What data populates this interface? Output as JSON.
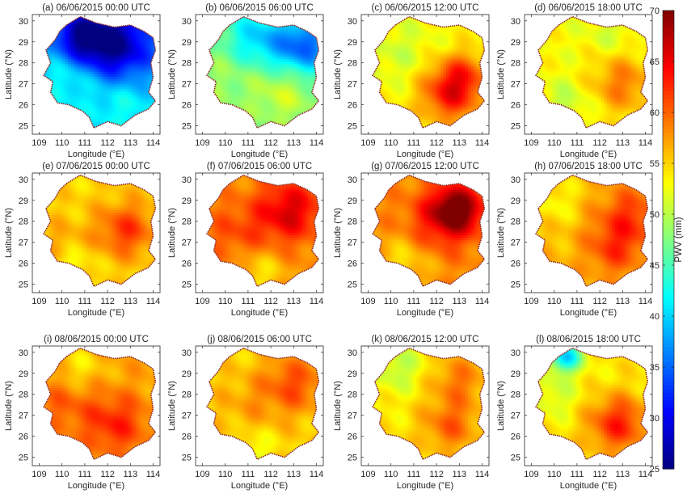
{
  "chart_data": {
    "type": "heatmap",
    "colorbar": {
      "label": "PWV (mm)",
      "min": 25,
      "max": 70,
      "ticks": [
        25,
        30,
        35,
        40,
        45,
        50,
        55,
        60,
        65,
        70
      ],
      "colormap": "jet"
    },
    "x_ticks": [
      109,
      110,
      111,
      112,
      113,
      114
    ],
    "y_ticks": [
      25,
      26,
      27,
      28,
      29,
      30
    ],
    "xlim": [
      108.7,
      114.3
    ],
    "ylim": [
      24.6,
      30.3
    ],
    "xlabel": "Longitude (°E)",
    "ylabel": "Latitude (°N)",
    "panels": [
      {
        "title": "(a) 06/06/2015  00:00 UTC",
        "base": 40,
        "blobs": [
          [
            112.3,
            28.9,
            -14,
            1.25
          ],
          [
            110.8,
            29.3,
            -10,
            0.9
          ],
          [
            112.6,
            26.1,
            3,
            0.9
          ],
          [
            110.5,
            27.5,
            4,
            0.9
          ]
        ]
      },
      {
        "title": "(b) 06/06/2015  06:00 UTC",
        "base": 47,
        "blobs": [
          [
            113.5,
            28.8,
            -12,
            0.9
          ],
          [
            111.5,
            29.2,
            -7,
            1.0
          ],
          [
            112.5,
            26.5,
            4,
            1.0
          ],
          [
            110.0,
            27.5,
            2,
            1.0
          ]
        ]
      },
      {
        "title": "(c) 06/06/2015  12:00 UTC",
        "base": 53,
        "blobs": [
          [
            112.6,
            26.5,
            10,
            0.95
          ],
          [
            113.2,
            27.5,
            6,
            0.8
          ],
          [
            110.3,
            28.5,
            -2,
            1.0
          ]
        ]
      },
      {
        "title": "(d) 06/06/2015  18:00 UTC",
        "base": 53,
        "blobs": [
          [
            113.0,
            27.0,
            6,
            1.0
          ],
          [
            110.5,
            26.0,
            -3,
            0.8
          ],
          [
            112.5,
            29.5,
            -2,
            0.7
          ]
        ]
      },
      {
        "title": "(e) 07/06/2015  00:00 UTC",
        "base": 55,
        "blobs": [
          [
            112.8,
            27.6,
            7,
            0.9
          ],
          [
            110.0,
            27.0,
            2,
            0.8
          ],
          [
            110.5,
            26.0,
            -3,
            0.6
          ]
        ]
      },
      {
        "title": "(f) 07/06/2015  06:00 UTC",
        "base": 58,
        "blobs": [
          [
            112.8,
            28.5,
            8,
            1.0
          ],
          [
            110.5,
            27.5,
            3,
            1.0
          ],
          [
            111.5,
            25.5,
            -4,
            0.8
          ]
        ]
      },
      {
        "title": "(g) 07/06/2015  12:00 UTC",
        "base": 58,
        "blobs": [
          [
            112.9,
            28.6,
            12,
            0.75
          ],
          [
            112.2,
            28.0,
            5,
            1.1
          ],
          [
            110.5,
            26.0,
            -4,
            0.9
          ]
        ]
      },
      {
        "title": "(h) 07/06/2015  18:00 UTC",
        "base": 56,
        "blobs": [
          [
            113.3,
            28.2,
            6,
            1.0
          ],
          [
            112.6,
            26.6,
            5,
            0.9
          ],
          [
            110.0,
            29.0,
            -3,
            0.8
          ]
        ]
      },
      {
        "title": "(i) 08/06/2015  00:00 UTC",
        "base": 57,
        "blobs": [
          [
            112.3,
            26.6,
            6,
            1.0
          ],
          [
            110.0,
            27.5,
            3,
            0.9
          ],
          [
            110.8,
            29.3,
            -3,
            0.7
          ]
        ]
      },
      {
        "title": "(j) 08/06/2015  06:00 UTC",
        "base": 55,
        "blobs": [
          [
            113.0,
            28.5,
            6,
            1.0
          ],
          [
            111.0,
            27.5,
            2,
            1.0
          ],
          [
            111.2,
            25.3,
            -3,
            0.7
          ]
        ]
      },
      {
        "title": "(k) 08/06/2015  12:00 UTC",
        "base": 54,
        "blobs": [
          [
            113.0,
            28.7,
            5,
            0.9
          ],
          [
            112.6,
            26.5,
            6,
            0.9
          ],
          [
            110.3,
            29.3,
            -4,
            0.8
          ]
        ]
      },
      {
        "title": "(l) 08/06/2015  18:00 UTC",
        "base": 54,
        "blobs": [
          [
            112.8,
            26.6,
            9,
            0.95
          ],
          [
            110.5,
            29.8,
            -14,
            0.5
          ],
          [
            110.0,
            28.0,
            -3,
            0.8
          ]
        ]
      }
    ]
  }
}
